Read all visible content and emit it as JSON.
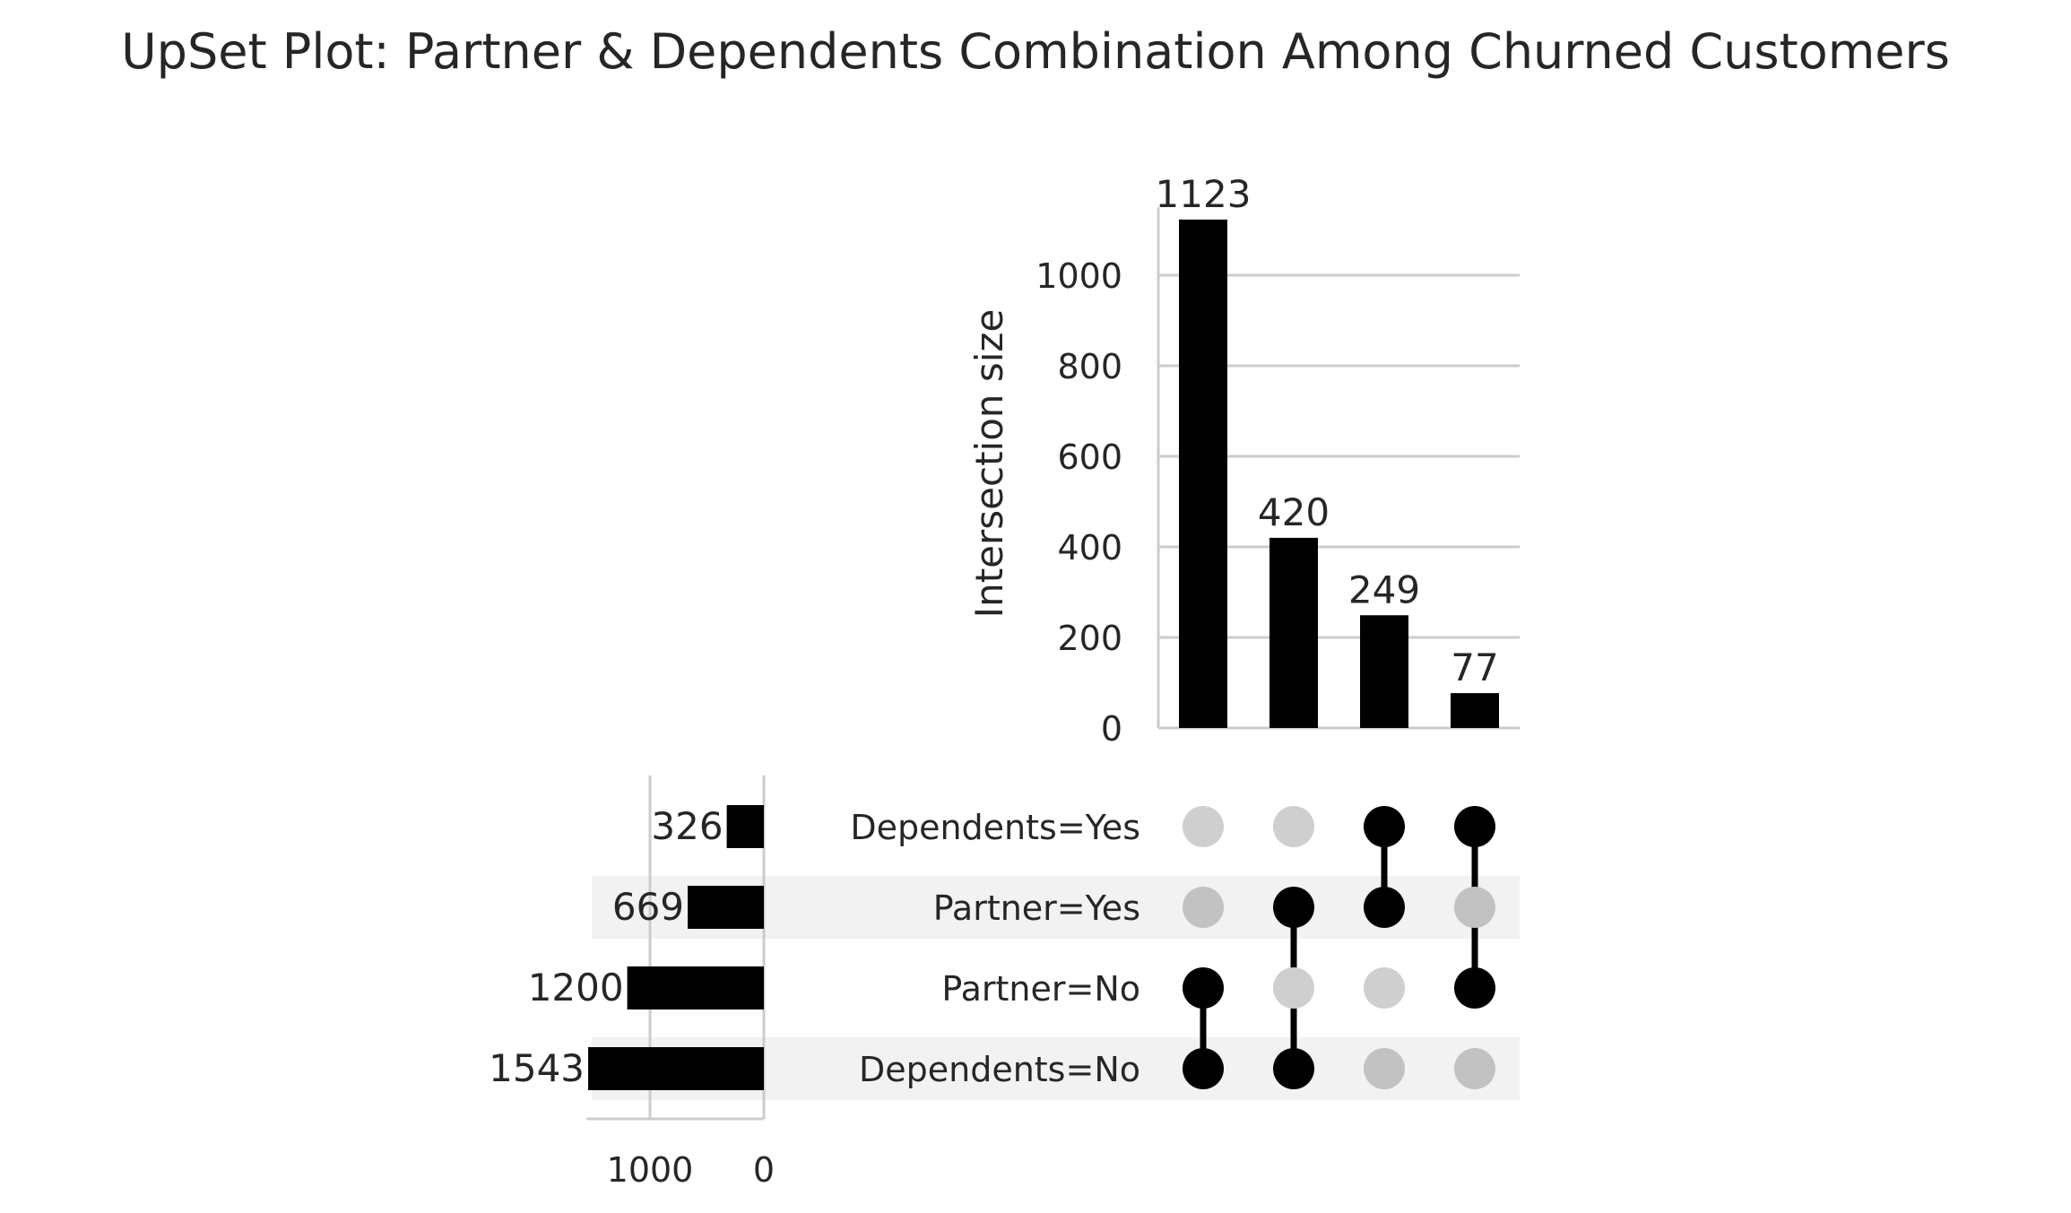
{
  "chart_data": {
    "type": "upset",
    "title": "UpSet Plot: Partner & Dependents Combination Among Churned Customers",
    "ylabel": "Intersection size",
    "ylim": [
      0,
      1150
    ],
    "yticks": [
      0,
      200,
      400,
      600,
      800,
      1000
    ],
    "grid": true,
    "sets": [
      {
        "name": "Dependents=Yes",
        "size": 326
      },
      {
        "name": "Partner=Yes",
        "size": 669
      },
      {
        "name": "Partner=No",
        "size": 1200
      },
      {
        "name": "Dependents=No",
        "size": 1543
      }
    ],
    "set_size_ticks": [
      1000,
      0
    ],
    "set_size_tick_labels": [
      "1000",
      "0"
    ],
    "intersections": [
      {
        "members": [
          "Partner=No",
          "Dependents=No"
        ],
        "size": 1123
      },
      {
        "members": [
          "Partner=Yes",
          "Dependents=No"
        ],
        "size": 420
      },
      {
        "members": [
          "Dependents=Yes",
          "Partner=Yes"
        ],
        "size": 249
      },
      {
        "members": [
          "Dependents=Yes",
          "Partner=No"
        ],
        "size": 77
      }
    ],
    "colors": {
      "bar": "#000000",
      "dot_active": "#000000",
      "dot_inactive": "#cfcfcf",
      "dot_inactive_shaded": "#c2c2c2",
      "row_shade": "#f2f2f2",
      "grid": "#cccccc",
      "text": "#262626"
    }
  }
}
